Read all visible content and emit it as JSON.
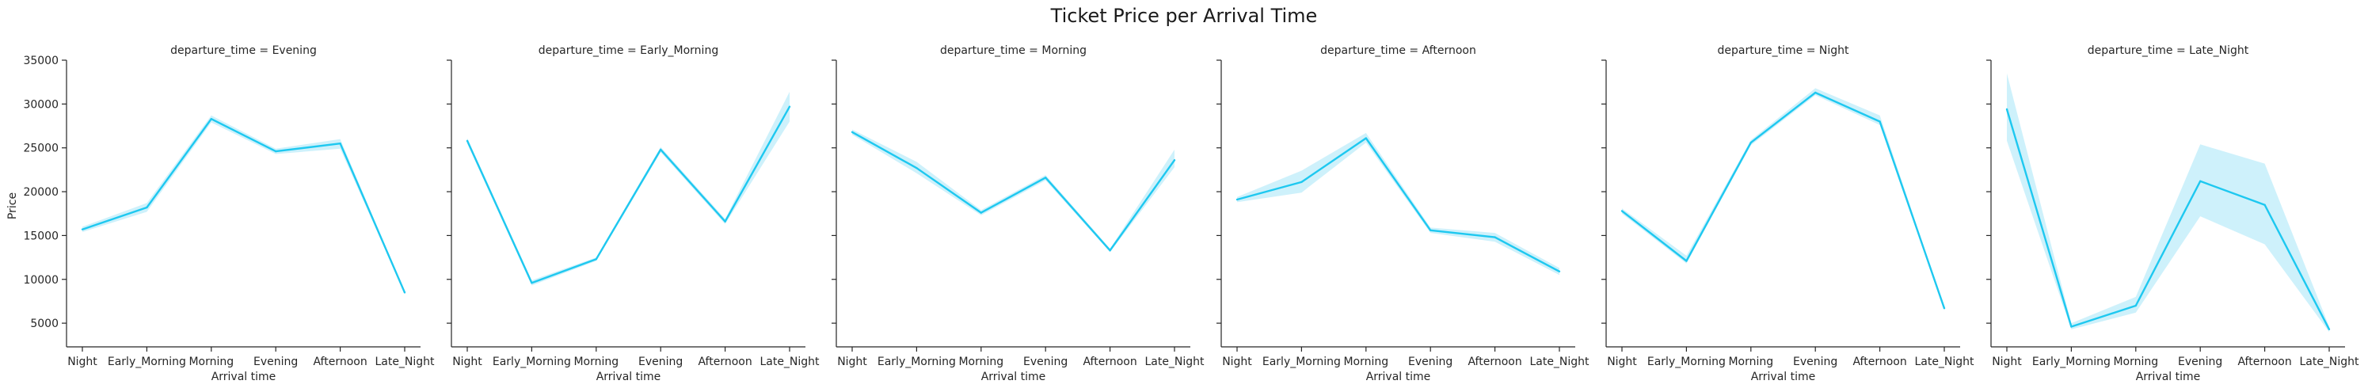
{
  "chart_data": {
    "type": "line",
    "title": "Ticket Price per Arrival Time",
    "ylabel": "Price",
    "xlabel": "Arrival time",
    "ylim": [
      2300,
      35000
    ],
    "yticks": [
      5000,
      10000,
      15000,
      20000,
      25000,
      30000,
      35000
    ],
    "line_color": "#1ec8f0",
    "band_color": "#a6e6f7",
    "panels": [
      {
        "title": "departure_time = Evening",
        "categories": [
          "Night",
          "Early_Morning",
          "Morning",
          "Evening",
          "Afternoon",
          "Late_Night"
        ],
        "values": [
          15700,
          18200,
          28300,
          24600,
          25500,
          8500
        ],
        "ci_low": [
          15400,
          17700,
          27900,
          24300,
          24900,
          8400
        ],
        "ci_high": [
          16000,
          18700,
          28700,
          24900,
          26000,
          8600
        ]
      },
      {
        "title": "departure_time = Early_Morning",
        "categories": [
          "Night",
          "Early_Morning",
          "Morning",
          "Evening",
          "Afternoon",
          "Late_Night"
        ],
        "values": [
          25800,
          9600,
          12300,
          24800,
          16600,
          29700
        ],
        "ci_low": [
          25500,
          9300,
          12100,
          24500,
          16300,
          28000
        ],
        "ci_high": [
          26100,
          9900,
          12500,
          25100,
          16900,
          31400
        ]
      },
      {
        "title": "departure_time = Morning",
        "categories": [
          "Night",
          "Early_Morning",
          "Morning",
          "Evening",
          "Afternoon",
          "Late_Night"
        ],
        "values": [
          26800,
          22700,
          17600,
          21600,
          13300,
          23600
        ],
        "ci_low": [
          26500,
          22100,
          17300,
          21300,
          13100,
          22800
        ],
        "ci_high": [
          27100,
          23400,
          17900,
          21900,
          13500,
          24800
        ]
      },
      {
        "title": "departure_time = Afternoon",
        "categories": [
          "Night",
          "Early_Morning",
          "Morning",
          "Evening",
          "Afternoon",
          "Late_Night"
        ],
        "values": [
          19100,
          21100,
          26100,
          15600,
          14800,
          10900
        ],
        "ci_low": [
          18800,
          19900,
          25600,
          15300,
          14300,
          10500
        ],
        "ci_high": [
          19400,
          22400,
          26700,
          15900,
          15300,
          11300
        ]
      },
      {
        "title": "departure_time = Night",
        "categories": [
          "Night",
          "Early_Morning",
          "Morning",
          "Evening",
          "Afternoon",
          "Late_Night"
        ],
        "values": [
          17800,
          12100,
          25600,
          31300,
          28000,
          6700
        ],
        "ci_low": [
          17500,
          11800,
          25300,
          31000,
          27600,
          6600
        ],
        "ci_high": [
          18100,
          12700,
          25900,
          31800,
          28700,
          6800
        ]
      },
      {
        "title": "departure_time = Late_Night",
        "categories": [
          "Night",
          "Early_Morning",
          "Morning",
          "Evening",
          "Afternoon",
          "Late_Night"
        ],
        "values": [
          29400,
          4600,
          7000,
          21200,
          18500,
          4300
        ],
        "ci_low": [
          25800,
          4300,
          6200,
          17200,
          14000,
          4000
        ],
        "ci_high": [
          33500,
          5000,
          8000,
          25400,
          23200,
          4600
        ]
      }
    ]
  }
}
